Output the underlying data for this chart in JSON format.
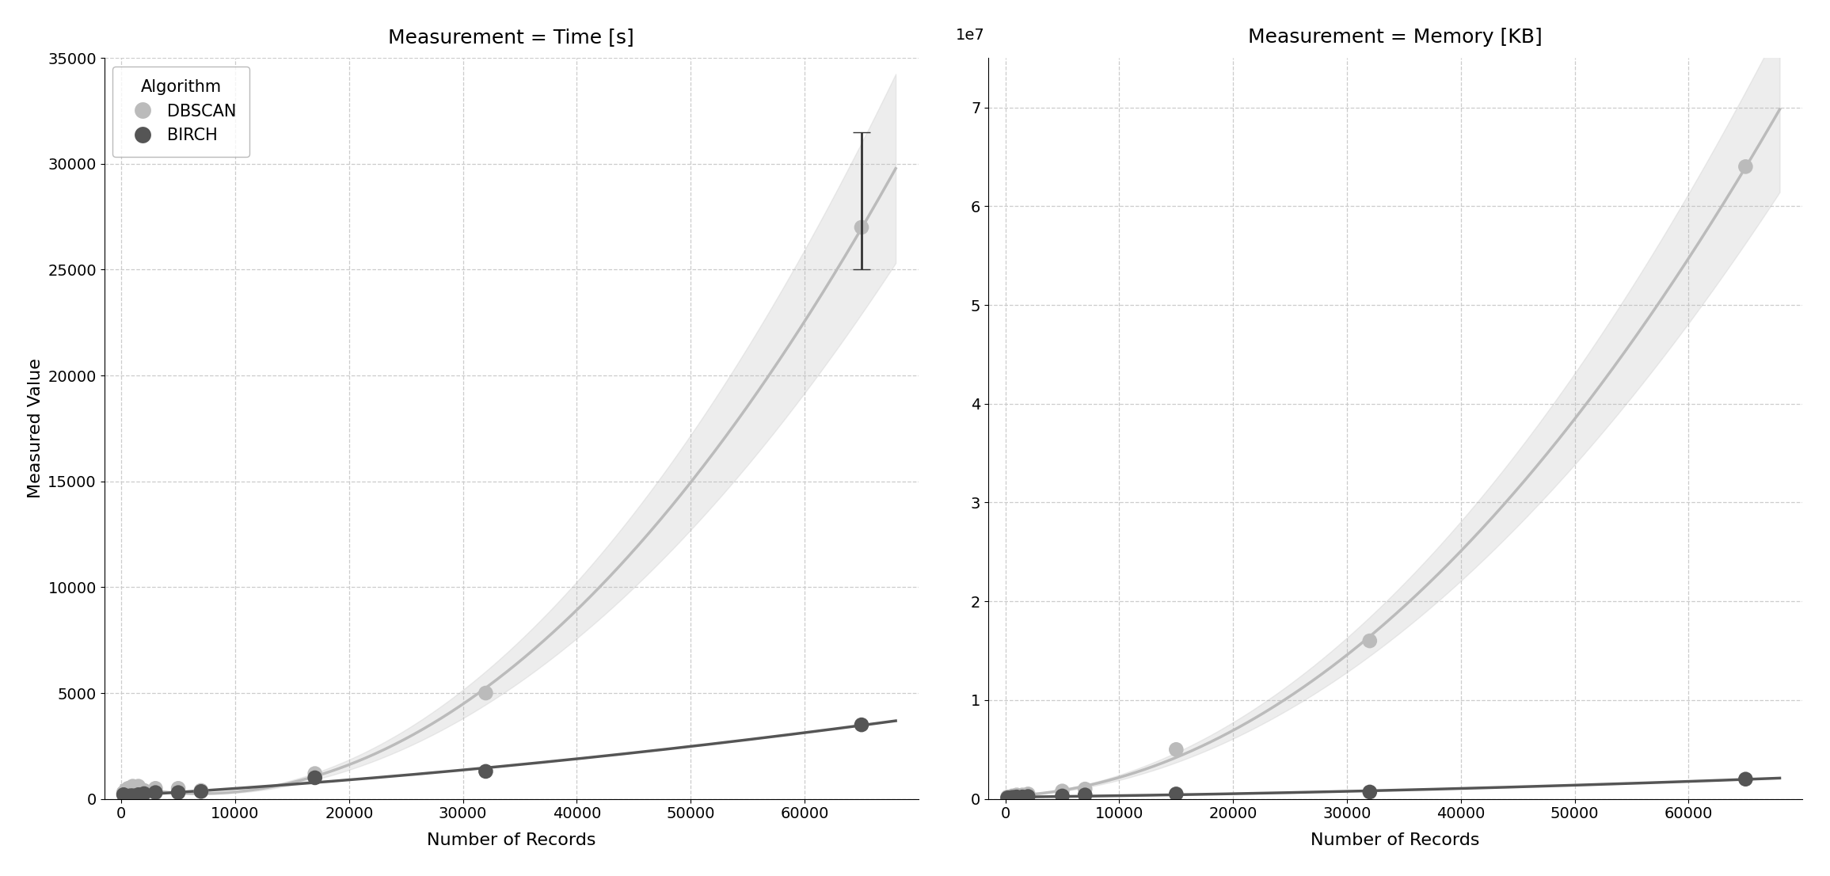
{
  "title_left": "Measurement = Time [s]",
  "title_right": "Measurement = Memory [KB]",
  "xlabel": "Number of Records",
  "ylabel": "Measured Value",
  "legend_title": "Algorithm",
  "dbscan_label": "DBSCAN",
  "birch_label": "BIRCH",
  "dbscan_color": "#bbbbbb",
  "birch_color": "#555555",
  "background_color": "#ffffff",
  "time_dbscan_x": [
    200,
    400,
    600,
    800,
    1000,
    1500,
    2000,
    3000,
    5000,
    7000,
    17000,
    32000,
    65000
  ],
  "time_dbscan_y": [
    300,
    400,
    500,
    500,
    600,
    600,
    400,
    500,
    500,
    400,
    1200,
    5000,
    27000
  ],
  "time_dbscan_err_low": 2000,
  "time_dbscan_err_high": 4500,
  "time_birch_x": [
    200,
    400,
    600,
    800,
    1000,
    1500,
    2000,
    3000,
    5000,
    7000,
    17000,
    32000,
    65000
  ],
  "time_birch_y": [
    200,
    100,
    100,
    150,
    150,
    200,
    250,
    300,
    300,
    350,
    1000,
    1300,
    3500
  ],
  "mem_dbscan_x": [
    200,
    400,
    600,
    800,
    1000,
    1500,
    2000,
    5000,
    7000,
    15000,
    32000,
    65000
  ],
  "mem_dbscan_y": [
    200000,
    200000,
    300000,
    300000,
    400000,
    400000,
    500000,
    800000,
    1000000,
    5000000,
    16000000,
    64000000
  ],
  "mem_birch_x": [
    200,
    400,
    600,
    800,
    1000,
    1500,
    2000,
    5000,
    7000,
    15000,
    32000,
    65000
  ],
  "mem_birch_y": [
    100000,
    100000,
    150000,
    150000,
    200000,
    200000,
    250000,
    300000,
    400000,
    500000,
    700000,
    2000000
  ],
  "time_ylim": [
    0,
    35000
  ],
  "mem_ylim": [
    0,
    75000000
  ],
  "xlim": [
    -1500,
    70000
  ],
  "xticks": [
    0,
    10000,
    20000,
    30000,
    40000,
    50000,
    60000
  ],
  "time_yticks": [
    0,
    5000,
    10000,
    15000,
    20000,
    25000,
    30000,
    35000
  ],
  "mem_yticks": [
    0,
    10000000,
    20000000,
    30000000,
    40000000,
    50000000,
    60000000,
    70000000
  ],
  "scatter_size": 180,
  "line_width": 2.5,
  "font_size_title": 18,
  "font_size_label": 16,
  "font_size_tick": 14,
  "font_size_legend": 15,
  "conf_band_alpha": 0.25
}
